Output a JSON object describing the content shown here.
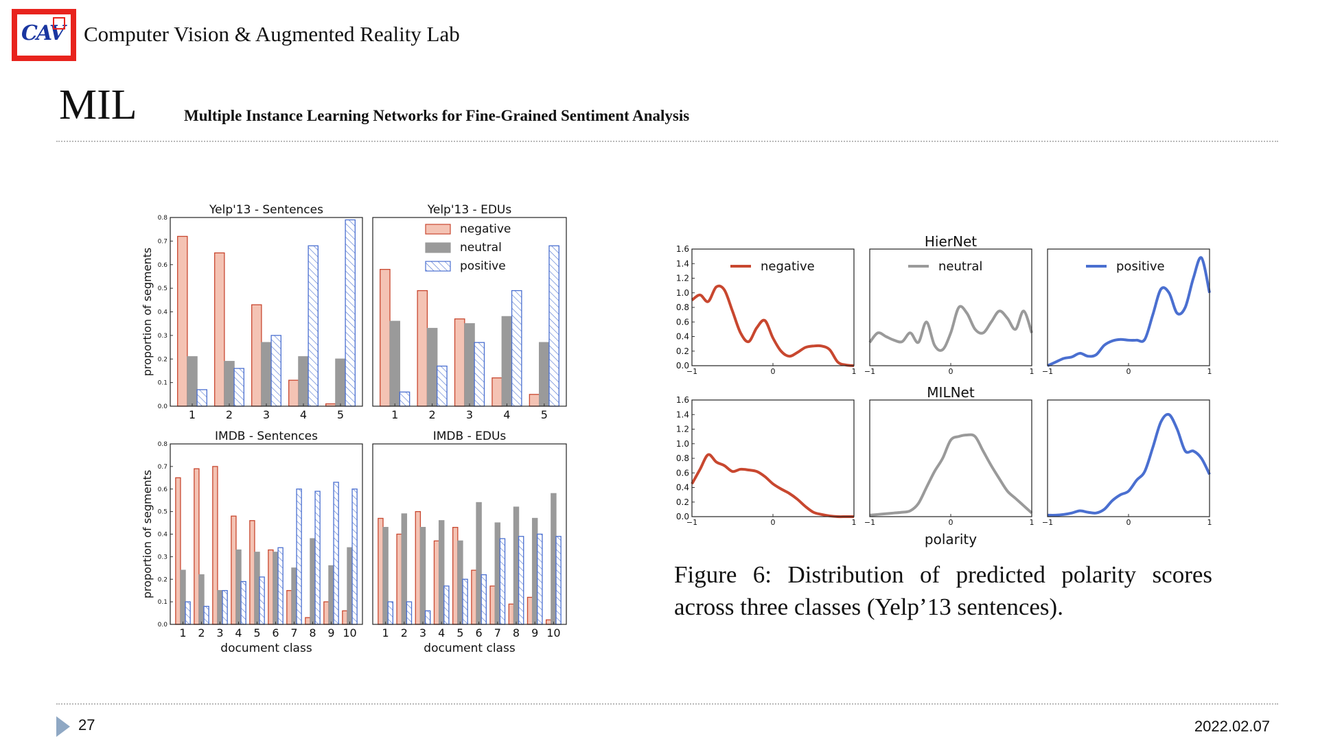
{
  "header": {
    "logo_text": "CAV",
    "lab_name": "Computer Vision & Augmented Reality Lab"
  },
  "slide": {
    "title": "MIL",
    "subtitle": "Multiple Instance Learning Networks for Fine-Grained Sentiment Analysis"
  },
  "caption": {
    "line1": "Figure 6:  Distribution of predicted polarity scores",
    "line2": "across three classes (Yelp’13 sentences)."
  },
  "footer": {
    "page": "27",
    "date": "2022.02.07"
  },
  "colors": {
    "negative": "#c8472f",
    "negative_fill": "#f4c3b4",
    "neutral": "#9a9a9a",
    "positive": "#4a6fd0"
  },
  "chart_data": [
    {
      "type": "bar",
      "title": "Yelp'13 - Sentences",
      "categories": [
        "1",
        "2",
        "3",
        "4",
        "5"
      ],
      "ylabel": "proportion of segments",
      "xlabel": "",
      "ylim": [
        0,
        0.8
      ],
      "yticks": [
        "0.0",
        "0.1",
        "0.2",
        "0.3",
        "0.4",
        "0.5",
        "0.6",
        "0.7",
        "0.8"
      ],
      "series": [
        {
          "name": "negative",
          "values": [
            0.72,
            0.65,
            0.43,
            0.11,
            0.01
          ]
        },
        {
          "name": "neutral",
          "values": [
            0.21,
            0.19,
            0.27,
            0.21,
            0.2
          ]
        },
        {
          "name": "positive",
          "values": [
            0.07,
            0.16,
            0.3,
            0.68,
            0.79
          ]
        }
      ]
    },
    {
      "type": "bar",
      "title": "Yelp'13 - EDUs",
      "categories": [
        "1",
        "2",
        "3",
        "4",
        "5"
      ],
      "ylabel": "",
      "xlabel": "",
      "ylim": [
        0,
        0.8
      ],
      "yticks": [],
      "legend": [
        "negative",
        "neutral",
        "positive"
      ],
      "legend_position": "top-right",
      "series": [
        {
          "name": "negative",
          "values": [
            0.58,
            0.49,
            0.37,
            0.12,
            0.05
          ]
        },
        {
          "name": "neutral",
          "values": [
            0.36,
            0.33,
            0.35,
            0.38,
            0.27
          ]
        },
        {
          "name": "positive",
          "values": [
            0.06,
            0.17,
            0.27,
            0.49,
            0.68
          ]
        }
      ]
    },
    {
      "type": "bar",
      "title": "IMDB - Sentences",
      "categories": [
        "1",
        "2",
        "3",
        "4",
        "5",
        "6",
        "7",
        "8",
        "9",
        "10"
      ],
      "ylabel": "proportion of segments",
      "xlabel": "document class",
      "ylim": [
        0,
        0.8
      ],
      "yticks": [
        "0.0",
        "0.1",
        "0.2",
        "0.3",
        "0.4",
        "0.5",
        "0.6",
        "0.7",
        "0.8"
      ],
      "series": [
        {
          "name": "negative",
          "values": [
            0.65,
            0.69,
            0.7,
            0.48,
            0.46,
            0.33,
            0.15,
            0.03,
            0.1,
            0.06
          ]
        },
        {
          "name": "neutral",
          "values": [
            0.24,
            0.22,
            0.15,
            0.33,
            0.32,
            0.32,
            0.25,
            0.38,
            0.26,
            0.34
          ]
        },
        {
          "name": "positive",
          "values": [
            0.1,
            0.08,
            0.15,
            0.19,
            0.21,
            0.34,
            0.6,
            0.59,
            0.63,
            0.6
          ]
        }
      ]
    },
    {
      "type": "bar",
      "title": "IMDB - EDUs",
      "categories": [
        "1",
        "2",
        "3",
        "4",
        "5",
        "6",
        "7",
        "8",
        "9",
        "10"
      ],
      "ylabel": "",
      "xlabel": "document class",
      "ylim": [
        0,
        0.8
      ],
      "yticks": [],
      "series": [
        {
          "name": "negative",
          "values": [
            0.47,
            0.4,
            0.5,
            0.37,
            0.43,
            0.24,
            0.17,
            0.09,
            0.12,
            0.02
          ]
        },
        {
          "name": "neutral",
          "values": [
            0.43,
            0.49,
            0.43,
            0.46,
            0.37,
            0.54,
            0.45,
            0.52,
            0.47,
            0.58
          ]
        },
        {
          "name": "positive",
          "values": [
            0.1,
            0.1,
            0.06,
            0.17,
            0.2,
            0.22,
            0.38,
            0.39,
            0.4,
            0.39
          ]
        }
      ]
    },
    {
      "type": "line",
      "row_titles": [
        "HierNet",
        "MILNet"
      ],
      "xlabel": "polarity",
      "xlim": [
        -1,
        1
      ],
      "ylim": [
        0,
        1.6
      ],
      "xticks": [
        "−1",
        "0",
        "1"
      ],
      "yticks": [
        "0.0",
        "0.2",
        "0.4",
        "0.6",
        "0.8",
        "1.0",
        "1.2",
        "1.4",
        "1.6"
      ],
      "legend": [
        "negative",
        "neutral",
        "positive"
      ],
      "x": [
        -1,
        -0.9,
        -0.8,
        -0.7,
        -0.6,
        -0.5,
        -0.4,
        -0.3,
        -0.2,
        -0.1,
        0,
        0.1,
        0.2,
        0.3,
        0.4,
        0.5,
        0.6,
        0.7,
        0.8,
        0.9,
        1
      ],
      "panels": [
        {
          "row": "HierNet",
          "name": "negative",
          "values": [
            0.9,
            0.97,
            0.88,
            1.08,
            1.04,
            0.75,
            0.45,
            0.33,
            0.52,
            0.62,
            0.38,
            0.2,
            0.13,
            0.18,
            0.25,
            0.27,
            0.27,
            0.22,
            0.05,
            0.01,
            0.0
          ]
        },
        {
          "row": "HierNet",
          "name": "neutral",
          "values": [
            0.32,
            0.45,
            0.4,
            0.35,
            0.33,
            0.45,
            0.32,
            0.6,
            0.28,
            0.22,
            0.45,
            0.8,
            0.72,
            0.5,
            0.45,
            0.6,
            0.75,
            0.65,
            0.5,
            0.75,
            0.45
          ]
        },
        {
          "row": "HierNet",
          "name": "positive",
          "values": [
            0.0,
            0.05,
            0.1,
            0.12,
            0.17,
            0.13,
            0.15,
            0.28,
            0.34,
            0.36,
            0.35,
            0.35,
            0.36,
            0.7,
            1.05,
            1.0,
            0.72,
            0.8,
            1.2,
            1.48,
            1.0
          ]
        },
        {
          "row": "MILNet",
          "name": "negative",
          "values": [
            0.45,
            0.65,
            0.85,
            0.75,
            0.7,
            0.62,
            0.65,
            0.64,
            0.62,
            0.55,
            0.45,
            0.38,
            0.32,
            0.24,
            0.14,
            0.06,
            0.03,
            0.01,
            0.0,
            0.0,
            0.0
          ]
        },
        {
          "row": "MILNet",
          "name": "neutral",
          "values": [
            0.02,
            0.03,
            0.04,
            0.05,
            0.06,
            0.08,
            0.18,
            0.4,
            0.62,
            0.8,
            1.05,
            1.1,
            1.12,
            1.1,
            0.9,
            0.7,
            0.52,
            0.35,
            0.25,
            0.15,
            0.05
          ]
        },
        {
          "row": "MILNet",
          "name": "positive",
          "values": [
            0.02,
            0.02,
            0.03,
            0.05,
            0.08,
            0.06,
            0.05,
            0.1,
            0.22,
            0.3,
            0.35,
            0.5,
            0.62,
            0.95,
            1.3,
            1.4,
            1.2,
            0.9,
            0.9,
            0.8,
            0.58
          ]
        }
      ]
    }
  ]
}
